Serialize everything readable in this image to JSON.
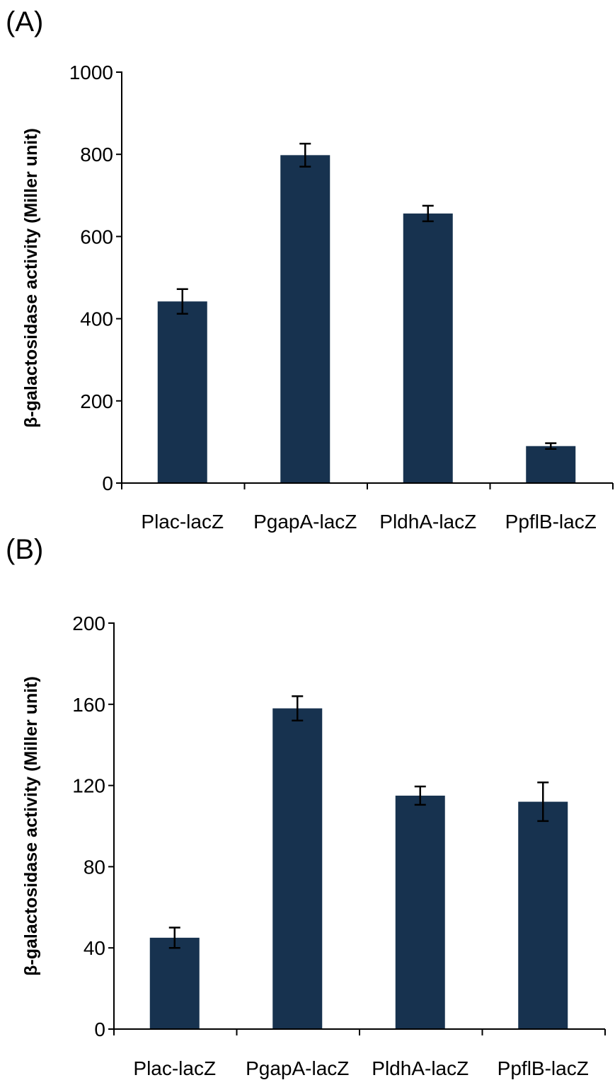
{
  "colors": {
    "bar": "#17324f",
    "axis": "#000000"
  },
  "chart_data": [
    {
      "type": "bar",
      "panel_label": "(A)",
      "title": "",
      "xlabel": "",
      "ylabel": "β-galactosidase activity (Miller unit)",
      "ylim": [
        0,
        1000
      ],
      "yticks": [
        0,
        200,
        400,
        600,
        800,
        1000
      ],
      "grid": false,
      "categories": [
        "Plac-lacZ",
        "PgapA-lacZ",
        "PldhA-lacZ",
        "PpflB-lacZ"
      ],
      "values": [
        442,
        798,
        656,
        90
      ],
      "errors": [
        30,
        28,
        19,
        7
      ]
    },
    {
      "type": "bar",
      "panel_label": "(B)",
      "title": "",
      "xlabel": "",
      "ylabel": "β-galactosidase activity (Miller unit)",
      "ylim": [
        0,
        200
      ],
      "yticks": [
        0,
        40,
        80,
        120,
        160,
        200
      ],
      "grid": false,
      "categories": [
        "Plac-lacZ",
        "PgapA-lacZ",
        "PldhA-lacZ",
        "PpflB-lacZ"
      ],
      "values": [
        45,
        158,
        115,
        112
      ],
      "errors": [
        5,
        6,
        4.5,
        9.5
      ]
    }
  ]
}
